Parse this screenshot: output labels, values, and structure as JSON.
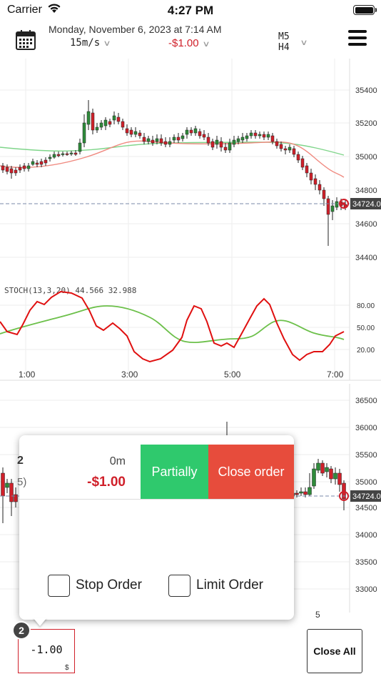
{
  "status_bar": {
    "carrier": "Carrier",
    "time": "4:27 PM"
  },
  "header": {
    "date": "Monday, November 6, 2023 at 7:14 AM",
    "timeframe": "15m/s",
    "pnl": "-$1.00",
    "tf_primary": "M5",
    "tf_secondary": "H4"
  },
  "main_chart": {
    "price_labels": [
      "35400",
      "35200",
      "35000",
      "34800",
      "34600",
      "34400"
    ],
    "current_price": "34724.0",
    "indicator_label": "STOCH(13,3,20) 44.566 32.988",
    "stoch_levels": [
      "80.00",
      "50.00",
      "20.00"
    ],
    "time_labels": [
      "1:00",
      "3:00",
      "5:00",
      "7:00"
    ]
  },
  "secondary_chart": {
    "price_labels": [
      "36500",
      "36000",
      "35500",
      "35000",
      "34500",
      "34000",
      "33500",
      "33000"
    ],
    "current_price": "34724.0",
    "time_label": "5"
  },
  "order_popup": {
    "left_digit": "2",
    "left_sub": "5)",
    "duration": "0m",
    "pnl": "-$1.00",
    "partially_label": "Partially",
    "close_order_label": "Close order",
    "stop_order_label": "Stop Order",
    "limit_order_label": "Limit Order"
  },
  "toolbar": {
    "badge_count": "2",
    "lot_value": "-1.00",
    "lot_currency": "$",
    "close_all_label": "Close All"
  },
  "colors": {
    "bull": "#2e8b3a",
    "bear": "#d0202a",
    "partial_button": "#2fc96d",
    "close_button": "#e74c3c",
    "ma_fast": "#f08a80",
    "ma_slow": "#7fd58a"
  }
}
